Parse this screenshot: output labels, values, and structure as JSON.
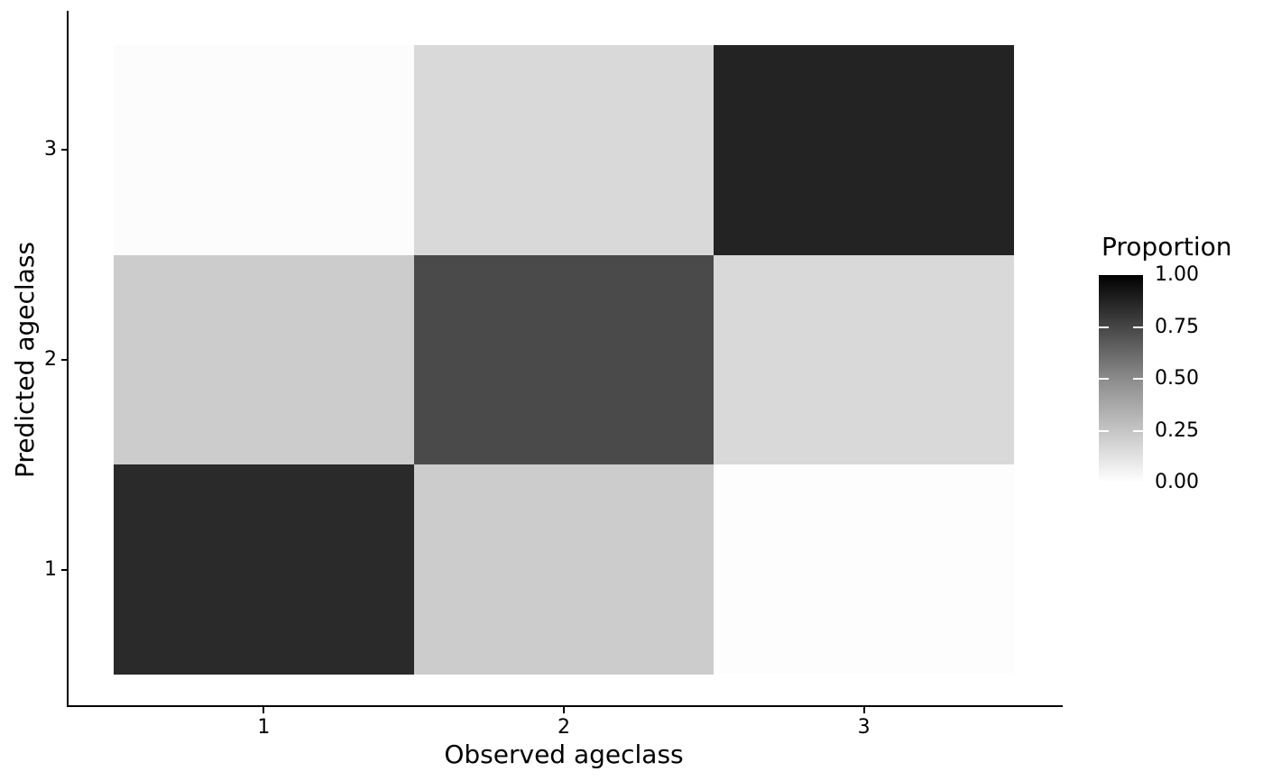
{
  "figure": {
    "background": "#ffffff",
    "axis_color": "#000000",
    "text_color": "#000000"
  },
  "chart_data": {
    "type": "heatmap",
    "title": "",
    "xlabel": "Observed ageclass",
    "ylabel": "Predicted ageclass",
    "x_tick_labels": [
      "1",
      "2",
      "3"
    ],
    "y_tick_labels": [
      "1",
      "2",
      "3"
    ],
    "x_range": [
      0.5,
      3.5
    ],
    "y_range": [
      0.5,
      3.5
    ],
    "grid": "off",
    "fill_variable": "Proportion",
    "legend": {
      "title": "Proportion",
      "position": "right",
      "type": "colorbar",
      "tick_labels": [
        "1.00",
        "0.75",
        "0.50",
        "0.25",
        "0.00"
      ],
      "tick_fractions_from_top": [
        0,
        0.25,
        0.5,
        0.75,
        1
      ],
      "bar_tick_fractions_from_top": [
        0.25,
        0.5,
        0.75
      ],
      "high_value": 1.0,
      "low_value": 0.0,
      "high_color": "#000000",
      "mid_color": "#8b8b8b",
      "low_color": "#ffffff"
    },
    "cells": [
      {
        "observed": 1,
        "predicted": 1,
        "proportion": 0.84,
        "color": "#2a2a2a"
      },
      {
        "observed": 1,
        "predicted": 2,
        "proportion": 0.18,
        "color": "#cccccc"
      },
      {
        "observed": 1,
        "predicted": 3,
        "proportion": 0.01,
        "color": "#fcfcfc"
      },
      {
        "observed": 2,
        "predicted": 1,
        "proportion": 0.18,
        "color": "#cccccc"
      },
      {
        "observed": 2,
        "predicted": 2,
        "proportion": 0.69,
        "color": "#4a4a4a"
      },
      {
        "observed": 2,
        "predicted": 3,
        "proportion": 0.14,
        "color": "#d9d9d9"
      },
      {
        "observed": 3,
        "predicted": 1,
        "proportion": 0.01,
        "color": "#fdfdfd"
      },
      {
        "observed": 3,
        "predicted": 2,
        "proportion": 0.14,
        "color": "#d9d9d9"
      },
      {
        "observed": 3,
        "predicted": 3,
        "proportion": 0.86,
        "color": "#232323"
      }
    ]
  }
}
